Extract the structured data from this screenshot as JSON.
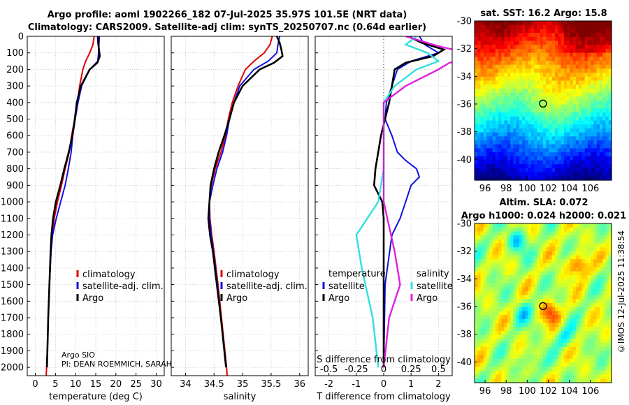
{
  "header": {
    "line1": "Argo profile: aoml 1902266_182 07-Jul-2025 35.97S 101.5E (NRT data)",
    "line2": "Climatology: CARS2009. Satellite-adj clim: synTS_20250707.nc (0.64d earlier)"
  },
  "credit": "©IMOS 12-Jul-2025 11:38:54",
  "colors": {
    "climatology": "#e00000",
    "satellite": "#1010e0",
    "argo": "#000000",
    "sat_salt": "#30e0e0",
    "argo_salt": "#e020e0"
  },
  "chart_data": [
    {
      "type": "line",
      "id": "temperature",
      "xlabel": "temperature (deg C)",
      "xlim": [
        -2,
        32
      ],
      "xticks": [
        0,
        5,
        10,
        15,
        20,
        25,
        30
      ],
      "ylim": [
        0,
        2050
      ],
      "yticks": [
        0,
        100,
        200,
        300,
        400,
        500,
        600,
        700,
        800,
        900,
        1000,
        1100,
        1200,
        1300,
        1400,
        1500,
        1600,
        1700,
        1800,
        1900,
        2000
      ],
      "legend": [
        "climatology",
        "satellite-adj. clim.",
        "Argo"
      ],
      "annotation": [
        "Argo SIO",
        "PI: DEAN ROEMMICH, SARAH"
      ],
      "series": [
        {
          "name": "climatology",
          "y": [
            0,
            50,
            100,
            150,
            200,
            300,
            400,
            500,
            600,
            700,
            800,
            900,
            1000,
            1100,
            1200,
            1300,
            1500,
            1700,
            1900,
            2000,
            2050
          ],
          "x": [
            14.6,
            14.3,
            13.5,
            12.5,
            11.8,
            11.0,
            10.5,
            9.8,
            9.0,
            8.4,
            7.4,
            6.5,
            5.5,
            4.7,
            4.2,
            3.9,
            3.5,
            3.2,
            3.0,
            2.8,
            2.7
          ]
        },
        {
          "name": "satellite-adj. clim.",
          "y": [
            0,
            50,
            100,
            150,
            200,
            300,
            400,
            500,
            600,
            700,
            800,
            900,
            1000,
            1100,
            1200,
            1300,
            1500,
            1700,
            1900,
            2000
          ],
          "x": [
            15.9,
            15.8,
            15.7,
            15.5,
            13.5,
            11.5,
            10.6,
            9.9,
            9.3,
            8.9,
            8.2,
            7.4,
            6.3,
            5.2,
            4.3,
            3.9,
            3.5,
            3.2,
            3.0,
            2.8
          ]
        },
        {
          "name": "Argo",
          "y": [
            0,
            40,
            80,
            120,
            160,
            200,
            300,
            400,
            500,
            600,
            700,
            800,
            900,
            1000,
            1100,
            1200,
            1300,
            1500,
            1700,
            1900,
            2000
          ],
          "x": [
            15.5,
            15.6,
            15.8,
            16.0,
            15.4,
            13.5,
            11.3,
            10.3,
            9.8,
            9.2,
            8.3,
            7.2,
            6.2,
            5.1,
            4.4,
            4.0,
            3.8,
            3.5,
            3.2,
            3.0,
            2.9
          ]
        }
      ]
    },
    {
      "type": "line",
      "id": "salinity",
      "xlabel": "salinity",
      "xlim": [
        33.75,
        36.15
      ],
      "xticks": [
        34,
        34.5,
        35,
        35.5,
        36
      ],
      "ylim": [
        0,
        2050
      ],
      "legend": [
        "climatology",
        "satellite-adj. clim.",
        "Argo"
      ],
      "series": [
        {
          "name": "climatology",
          "y": [
            0,
            50,
            100,
            150,
            200,
            300,
            400,
            500,
            600,
            700,
            800,
            900,
            1000,
            1100,
            1200,
            1300,
            1500,
            1700,
            1900,
            2000,
            2050
          ],
          "x": [
            35.52,
            35.48,
            35.38,
            35.2,
            35.05,
            34.92,
            34.82,
            34.75,
            34.7,
            34.62,
            34.52,
            34.45,
            34.42,
            34.43,
            34.46,
            34.5,
            34.57,
            34.63,
            34.69,
            34.72,
            34.73
          ]
        },
        {
          "name": "satellite-adj. clim.",
          "y": [
            0,
            50,
            100,
            150,
            200,
            300,
            400,
            500,
            600,
            700,
            800,
            900,
            1000,
            1100,
            1200,
            1300,
            1500,
            1700,
            1900,
            2000
          ],
          "x": [
            35.65,
            35.62,
            35.6,
            35.45,
            35.2,
            34.95,
            34.85,
            34.77,
            34.72,
            34.65,
            34.55,
            34.48,
            34.42,
            34.42,
            34.45,
            34.49,
            34.56,
            34.62,
            34.68,
            34.72
          ]
        },
        {
          "name": "Argo",
          "y": [
            0,
            40,
            80,
            120,
            160,
            200,
            300,
            400,
            500,
            600,
            700,
            800,
            900,
            1000,
            1100,
            1200,
            1300,
            1500,
            1700,
            1900,
            2000
          ],
          "x": [
            35.6,
            35.65,
            35.68,
            35.7,
            35.55,
            35.3,
            35.0,
            34.85,
            34.77,
            34.68,
            34.58,
            34.5,
            34.44,
            34.42,
            34.4,
            34.43,
            34.48,
            34.55,
            34.62,
            34.68,
            34.71
          ]
        }
      ]
    },
    {
      "type": "line",
      "id": "difference",
      "xlabel": "T difference from climatology",
      "xlim": [
        -2.5,
        2.5
      ],
      "xticks": [
        -2,
        -1,
        0,
        1,
        2
      ],
      "xticks_top": [
        "-0.5",
        "-0.25",
        "0",
        "0.25",
        "0.5"
      ],
      "top_label": "S difference from climatology",
      "ylim": [
        0,
        2050
      ],
      "legend_titles": [
        "temperature",
        "salinity"
      ],
      "legend_left": [
        "satellite",
        "Argo"
      ],
      "legend_right": [
        "satellite",
        "Argo"
      ],
      "series": [
        {
          "name": "temperature satellite",
          "y": [
            0,
            50,
            100,
            150,
            200,
            300,
            400,
            500,
            600,
            700,
            750,
            800,
            850,
            900,
            1000,
            1100,
            1200,
            1500,
            2000
          ],
          "x": [
            1.3,
            1.5,
            2.0,
            1.0,
            0.5,
            0.3,
            0.1,
            0.05,
            0.3,
            0.5,
            0.8,
            1.2,
            1.3,
            1.0,
            0.8,
            0.6,
            0.3,
            0.05,
            0.0
          ]
        },
        {
          "name": "temperature Argo",
          "y": [
            0,
            40,
            80,
            120,
            160,
            200,
            300,
            400,
            500,
            600,
            700,
            800,
            900,
            1000,
            1100,
            1200,
            1500,
            2000
          ],
          "x": [
            0.9,
            1.4,
            2.2,
            1.8,
            0.8,
            0.4,
            0.3,
            0.2,
            0.05,
            -0.1,
            -0.2,
            -0.3,
            -0.35,
            -0.05,
            0.0,
            0.0,
            0.0,
            0.0
          ]
        },
        {
          "name": "salinity satellite",
          "y": [
            0,
            50,
            100,
            150,
            200,
            300,
            400,
            500,
            600,
            800,
            1000,
            1100,
            1200,
            1400,
            1700,
            2000
          ],
          "x": [
            0.3,
            0.2,
            0.4,
            0.5,
            0.3,
            0.1,
            0.0,
            0.0,
            0.0,
            0.0,
            -0.05,
            -0.15,
            -0.25,
            -0.2,
            -0.1,
            -0.05
          ]
        },
        {
          "name": "salinity Argo",
          "y": [
            0,
            60,
            120,
            160,
            200,
            300,
            400,
            500,
            800,
            1000,
            1300,
            1500,
            1600,
            1700,
            2000
          ],
          "x": [
            0.2,
            0.5,
            0.9,
            0.6,
            0.5,
            0.2,
            0.0,
            0.0,
            0.0,
            0.0,
            0.1,
            0.15,
            0.1,
            0.05,
            0.0
          ]
        }
      ]
    },
    {
      "type": "heatmap",
      "id": "sst-map",
      "title": "sat. SST: 16.2 Argo: 15.8",
      "xlim": [
        95,
        108
      ],
      "ylim": [
        -41.5,
        -30
      ],
      "xticks": [
        96,
        98,
        100,
        102,
        104,
        106
      ],
      "yticks": [
        -30,
        -32,
        -34,
        -36,
        -38,
        -40
      ],
      "marker": {
        "lon": 101.5,
        "lat": -35.97
      }
    },
    {
      "type": "heatmap",
      "id": "sla-map",
      "title_line1": "Altim. SLA: 0.072",
      "title_line2": "Argo h1000: 0.024 h2000: 0.021",
      "xlim": [
        95,
        108
      ],
      "ylim": [
        -41.5,
        -30
      ],
      "xticks": [
        96,
        98,
        100,
        102,
        104,
        106
      ],
      "yticks": [
        -30,
        -32,
        -34,
        -36,
        -38,
        -40
      ],
      "marker": {
        "lon": 101.5,
        "lat": -35.97
      }
    }
  ]
}
